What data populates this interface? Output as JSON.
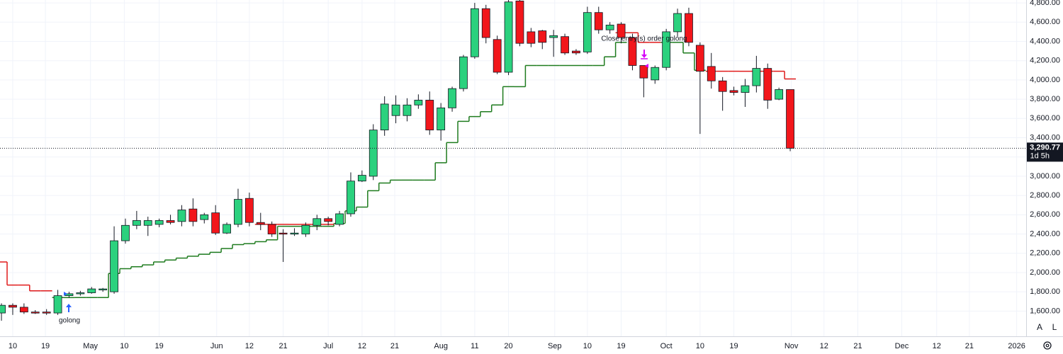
{
  "chart_data": {
    "type": "candlestick",
    "up_color": "#2bd17e",
    "down_color": "#f2161b",
    "grid": true,
    "xlim": [
      -0.13,
      90.94
    ],
    "ylim": [
      1360,
      4830
    ],
    "xticks": [
      {
        "value": 1.0,
        "label": "10"
      },
      {
        "value": 3.9,
        "label": "19"
      },
      {
        "value": 7.9,
        "label": "May"
      },
      {
        "value": 10.9,
        "label": "10"
      },
      {
        "value": 14.0,
        "label": "19"
      },
      {
        "value": 19.1,
        "label": "Jun"
      },
      {
        "value": 22.0,
        "label": "12"
      },
      {
        "value": 25.0,
        "label": "21"
      },
      {
        "value": 29.0,
        "label": "Jul"
      },
      {
        "value": 32.0,
        "label": "12"
      },
      {
        "value": 34.9,
        "label": "21"
      },
      {
        "value": 39.0,
        "label": "Aug"
      },
      {
        "value": 42.0,
        "label": "11"
      },
      {
        "value": 45.0,
        "label": "20"
      },
      {
        "value": 49.1,
        "label": "Sep"
      },
      {
        "value": 52.0,
        "label": "10"
      },
      {
        "value": 55.0,
        "label": "19"
      },
      {
        "value": 59.0,
        "label": "Oct"
      },
      {
        "value": 62.0,
        "label": "10"
      },
      {
        "value": 65.0,
        "label": "19"
      },
      {
        "value": 70.1,
        "label": "Nov"
      },
      {
        "value": 73.0,
        "label": "12"
      },
      {
        "value": 76.0,
        "label": "21"
      },
      {
        "value": 79.9,
        "label": "Dec"
      },
      {
        "value": 83.0,
        "label": "12"
      },
      {
        "value": 85.9,
        "label": "21"
      },
      {
        "value": 90.1,
        "label": "2026"
      }
    ],
    "yticks": [
      {
        "value": 1600,
        "label": "1,600.00"
      },
      {
        "value": 1800,
        "label": "1,800.00"
      },
      {
        "value": 2000,
        "label": "2,000.00"
      },
      {
        "value": 2200,
        "label": "2,200.00"
      },
      {
        "value": 2400,
        "label": "2,400.00"
      },
      {
        "value": 2600,
        "label": "2,600.00"
      },
      {
        "value": 2800,
        "label": "2,800.00"
      },
      {
        "value": 3000,
        "label": "3,000.00"
      },
      {
        "value": 3200,
        "label": "3,200.00"
      },
      {
        "value": 3400,
        "label": "3,400.00"
      },
      {
        "value": 3600,
        "label": "3,600.00"
      },
      {
        "value": 3800,
        "label": "3,800.00"
      },
      {
        "value": 4000,
        "label": "4,000.00"
      },
      {
        "value": 4200,
        "label": "4,200.00"
      },
      {
        "value": 4400,
        "label": "4,400.00"
      },
      {
        "value": 4600,
        "label": "4,600.00"
      },
      {
        "value": 4800,
        "label": "4,800.00"
      }
    ],
    "open": [
      1580,
      1660,
      1640,
      1590,
      1590,
      1580,
      1760,
      1780,
      1790,
      1820,
      1800,
      2330,
      2490,
      2490,
      2500,
      2540,
      2530,
      2660,
      2550,
      2620,
      2410,
      2500,
      2770,
      2520,
      2500,
      2410,
      2400,
      2400,
      2490,
      2560,
      2500,
      2610,
      2950,
      3000,
      3480,
      3630,
      3630,
      3740,
      3790,
      3480,
      3710,
      3910,
      4240,
      4740,
      4420,
      4080,
      4820,
      4500,
      4510,
      4440,
      4450,
      4300,
      4290,
      4700,
      4520,
      4580,
      4440,
      4150,
      4000,
      4130,
      4500,
      4690,
      4360,
      4140,
      3990,
      3890,
      3870,
      3940,
      4120,
      3800,
      3900
    ],
    "high": [
      1680,
      1680,
      1680,
      1610,
      1620,
      1820,
      1800,
      1810,
      1850,
      1840,
      2480,
      2560,
      2640,
      2580,
      2560,
      2600,
      2700,
      2770,
      2620,
      2700,
      2520,
      2870,
      2830,
      2620,
      2530,
      2450,
      2460,
      2520,
      2600,
      2580,
      2640,
      3040,
      3060,
      3540,
      3830,
      3840,
      3810,
      3850,
      3880,
      3760,
      3930,
      4260,
      4800,
      4780,
      4460,
      4830,
      4830,
      4540,
      4520,
      4520,
      4480,
      4320,
      4760,
      4760,
      4600,
      4600,
      4480,
      4150,
      4150,
      4530,
      4740,
      4750,
      4390,
      4280,
      4030,
      3930,
      4010,
      4250,
      4170,
      3920,
      3900
    ],
    "low": [
      1500,
      1560,
      1570,
      1570,
      1560,
      1560,
      1740,
      1760,
      1780,
      1800,
      1780,
      2300,
      2450,
      2380,
      2470,
      2500,
      2480,
      2480,
      2510,
      2390,
      2400,
      2470,
      2480,
      2440,
      2370,
      2110,
      2380,
      2370,
      2440,
      2490,
      2480,
      2580,
      2940,
      2960,
      3420,
      3550,
      3570,
      3700,
      3430,
      3370,
      3670,
      3880,
      4220,
      4380,
      4060,
      4050,
      4350,
      4340,
      4320,
      4240,
      4260,
      4260,
      4270,
      4480,
      4480,
      4380,
      4100,
      3820,
      3960,
      4100,
      4450,
      4350,
      3440,
      3910,
      3680,
      3840,
      3720,
      3870,
      3700,
      3790,
      3260
    ],
    "close": [
      1660,
      1640,
      1590,
      1580,
      1580,
      1760,
      1780,
      1790,
      1830,
      1830,
      2330,
      2490,
      2540,
      2540,
      2540,
      2520,
      2650,
      2530,
      2600,
      2410,
      2500,
      2760,
      2520,
      2500,
      2400,
      2400,
      2410,
      2490,
      2560,
      2530,
      2610,
      2950,
      3010,
      3480,
      3750,
      3740,
      3740,
      3790,
      3480,
      3710,
      3910,
      4240,
      4740,
      4440,
      4080,
      4810,
      4380,
      4380,
      4390,
      4460,
      4280,
      4280,
      4700,
      4520,
      4570,
      4440,
      4150,
      4020,
      4130,
      4500,
      4690,
      4390,
      4090,
      3990,
      3880,
      3870,
      3940,
      4120,
      3790,
      3900,
      3290.77
    ],
    "lines": [
      {
        "color": "#1e7b1e",
        "values": [
          null,
          null,
          null,
          null,
          null,
          1740,
          1740,
          1740,
          1740,
          1740,
          1990,
          2040,
          2060,
          2080,
          2110,
          2130,
          2150,
          2170,
          2190,
          2210,
          2250,
          2290,
          2300,
          2320,
          2340,
          2480,
          2480,
          2480,
          2480,
          2480,
          2510,
          2640,
          2680,
          2850,
          2930,
          2960,
          2960,
          2960,
          2960,
          3140,
          3350,
          3570,
          3620,
          3670,
          3740,
          3930,
          3930,
          4150,
          4150,
          4150,
          4150,
          4150,
          4150,
          4150,
          4240,
          4390,
          null,
          null,
          null,
          4390,
          4390,
          4280,
          4100,
          null,
          null,
          null,
          null,
          null,
          null,
          null,
          null
        ]
      },
      {
        "color": "#e01b1b",
        "values": [
          2110,
          1870,
          1870,
          1810,
          1810,
          null,
          null,
          null,
          null,
          null,
          null,
          null,
          null,
          null,
          null,
          null,
          null,
          null,
          null,
          null,
          null,
          null,
          null,
          2500,
          2500,
          2500,
          2500,
          2500,
          2500,
          2500,
          null,
          null,
          null,
          null,
          null,
          null,
          null,
          null,
          null,
          null,
          null,
          null,
          null,
          null,
          null,
          null,
          null,
          null,
          null,
          null,
          null,
          null,
          null,
          null,
          null,
          4490,
          4490,
          4390,
          4390,
          null,
          null,
          null,
          null,
          4090,
          4090,
          4090,
          4090,
          4090,
          4090,
          4090,
          4010
        ]
      }
    ],
    "annotations": [
      "golong",
      "Close entry(s) order golong"
    ],
    "last_price": {
      "value": 3290.77,
      "label": "3,290.77"
    },
    "countdown": "1d 5h",
    "buttons": [
      "A",
      "L"
    ]
  }
}
